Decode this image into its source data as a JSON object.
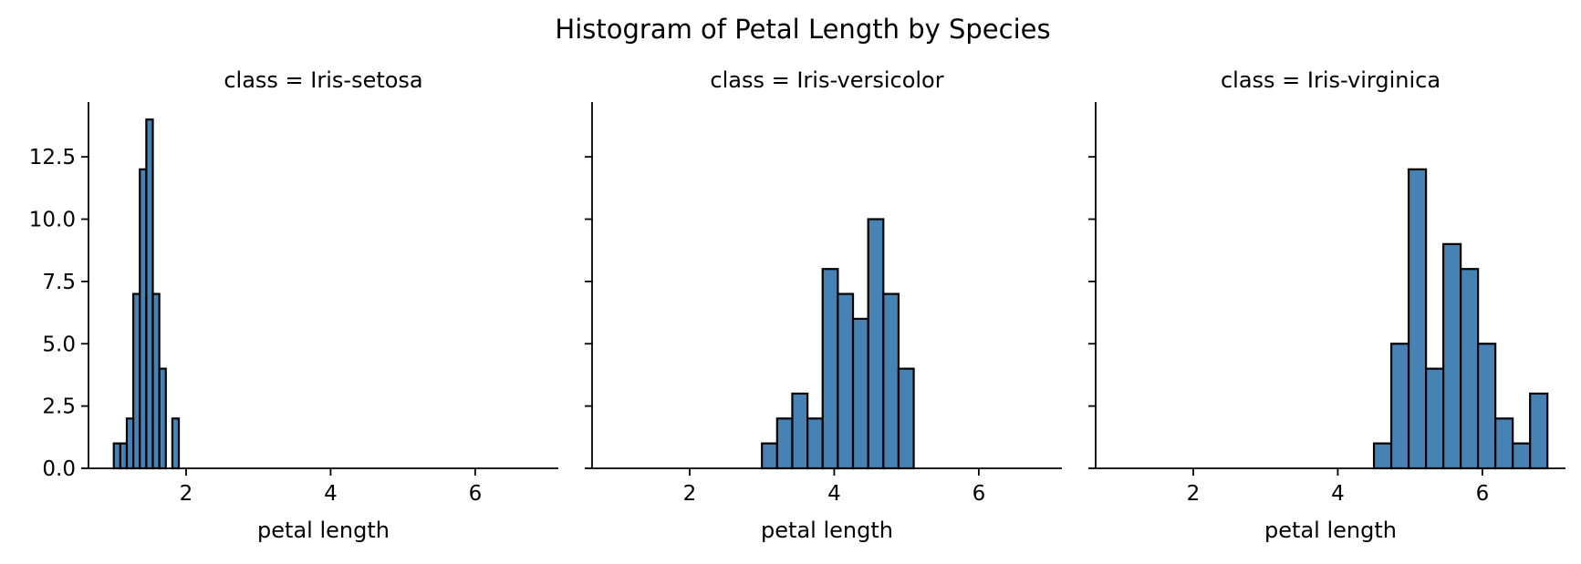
{
  "figure": {
    "title": "Histogram of Petal Length by Species"
  },
  "colors": {
    "bar_fill": "#4682b4",
    "bar_edge": "#000000",
    "axis": "#000000"
  },
  "chart_data": [
    {
      "type": "bar",
      "title": "class = Iris-setosa",
      "xlabel": "petal length",
      "ylabel": "",
      "xlim": [
        0.65,
        7.15
      ],
      "ylim": [
        0,
        14.7
      ],
      "xticks": [
        2,
        4,
        6
      ],
      "yticks": [
        "0.0",
        "2.5",
        "5.0",
        "7.5",
        "10.0",
        "12.5"
      ],
      "bins": [
        {
          "x0": 1.0,
          "x1": 1.09,
          "count": 1
        },
        {
          "x0": 1.09,
          "x1": 1.18,
          "count": 1
        },
        {
          "x0": 1.18,
          "x1": 1.27,
          "count": 2
        },
        {
          "x0": 1.27,
          "x1": 1.36,
          "count": 7
        },
        {
          "x0": 1.36,
          "x1": 1.45,
          "count": 12
        },
        {
          "x0": 1.45,
          "x1": 1.54,
          "count": 14
        },
        {
          "x0": 1.54,
          "x1": 1.63,
          "count": 7
        },
        {
          "x0": 1.63,
          "x1": 1.72,
          "count": 4
        },
        {
          "x0": 1.72,
          "x1": 1.81,
          "count": 0
        },
        {
          "x0": 1.81,
          "x1": 1.9,
          "count": 2
        }
      ]
    },
    {
      "type": "bar",
      "title": "class = Iris-versicolor",
      "xlabel": "petal length",
      "ylabel": "",
      "xlim": [
        0.65,
        7.15
      ],
      "ylim": [
        0,
        14.7
      ],
      "xticks": [
        2,
        4,
        6
      ],
      "yticks": [],
      "bins": [
        {
          "x0": 3.0,
          "x1": 3.21,
          "count": 1
        },
        {
          "x0": 3.21,
          "x1": 3.42,
          "count": 2
        },
        {
          "x0": 3.42,
          "x1": 3.63,
          "count": 3
        },
        {
          "x0": 3.63,
          "x1": 3.84,
          "count": 2
        },
        {
          "x0": 3.84,
          "x1": 4.05,
          "count": 8
        },
        {
          "x0": 4.05,
          "x1": 4.26,
          "count": 7
        },
        {
          "x0": 4.26,
          "x1": 4.47,
          "count": 6
        },
        {
          "x0": 4.47,
          "x1": 4.68,
          "count": 10
        },
        {
          "x0": 4.68,
          "x1": 4.89,
          "count": 7
        },
        {
          "x0": 4.89,
          "x1": 5.1,
          "count": 4
        }
      ]
    },
    {
      "type": "bar",
      "title": "class = Iris-virginica",
      "xlabel": "petal length",
      "ylabel": "",
      "xlim": [
        0.65,
        7.15
      ],
      "ylim": [
        0,
        14.7
      ],
      "xticks": [
        2,
        4,
        6
      ],
      "yticks": [],
      "bins": [
        {
          "x0": 4.5,
          "x1": 4.74,
          "count": 1
        },
        {
          "x0": 4.74,
          "x1": 4.98,
          "count": 5
        },
        {
          "x0": 4.98,
          "x1": 5.22,
          "count": 12
        },
        {
          "x0": 5.22,
          "x1": 5.46,
          "count": 4
        },
        {
          "x0": 5.46,
          "x1": 5.7,
          "count": 9
        },
        {
          "x0": 5.7,
          "x1": 5.94,
          "count": 8
        },
        {
          "x0": 5.94,
          "x1": 6.18,
          "count": 5
        },
        {
          "x0": 6.18,
          "x1": 6.42,
          "count": 2
        },
        {
          "x0": 6.42,
          "x1": 6.66,
          "count": 1
        },
        {
          "x0": 6.66,
          "x1": 6.9,
          "count": 3
        }
      ]
    }
  ]
}
